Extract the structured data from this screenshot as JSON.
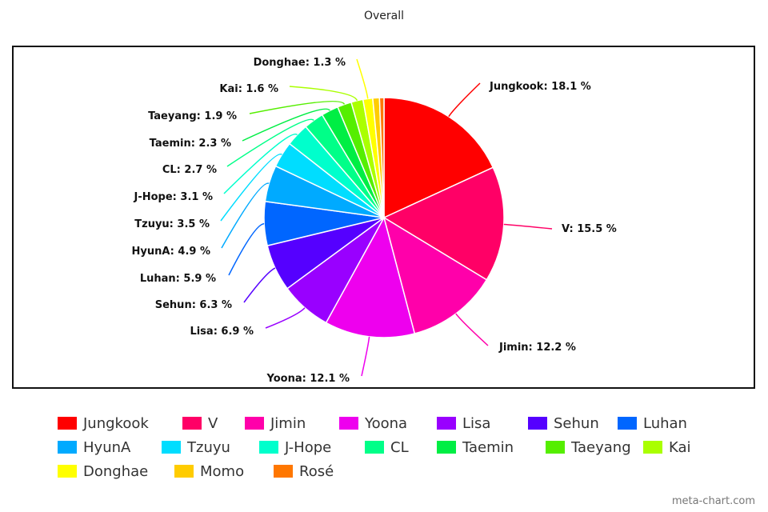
{
  "chart_data": {
    "type": "pie",
    "title": "Overall",
    "slices": [
      {
        "name": "Jungkook",
        "value": 18.1,
        "label": "Jungkook: 18.1 %",
        "color": "#ff0000"
      },
      {
        "name": "V",
        "value": 15.5,
        "label": "V: 15.5 %",
        "color": "#ff0066"
      },
      {
        "name": "Jimin",
        "value": 12.2,
        "label": "Jimin: 12.2 %",
        "color": "#ff00aa"
      },
      {
        "name": "Yoona",
        "value": 12.1,
        "label": "Yoona: 12.1 %",
        "color": "#ee00ee"
      },
      {
        "name": "Lisa",
        "value": 6.9,
        "label": "Lisa: 6.9 %",
        "color": "#9900ff"
      },
      {
        "name": "Sehun",
        "value": 6.3,
        "label": "Sehun: 6.3 %",
        "color": "#5500ff"
      },
      {
        "name": "Luhan",
        "value": 5.9,
        "label": "Luhan: 5.9 %",
        "color": "#0066ff"
      },
      {
        "name": "HyunA",
        "value": 4.9,
        "label": "HyunA: 4.9 %",
        "color": "#00aaff"
      },
      {
        "name": "Tzuyu",
        "value": 3.5,
        "label": "Tzuyu: 3.5 %",
        "color": "#00ddff"
      },
      {
        "name": "J-Hope",
        "value": 3.1,
        "label": "J-Hope: 3.1 %",
        "color": "#00ffcc"
      },
      {
        "name": "CL",
        "value": 2.7,
        "label": "CL: 2.7 %",
        "color": "#00ff88"
      },
      {
        "name": "Taemin",
        "value": 2.3,
        "label": "Taemin: 2.3 %",
        "color": "#00ee44"
      },
      {
        "name": "Taeyang",
        "value": 1.9,
        "label": "Taeyang: 1.9 %",
        "color": "#55ee00"
      },
      {
        "name": "Kai",
        "value": 1.6,
        "label": "Kai: 1.6 %",
        "color": "#aaff00"
      },
      {
        "name": "Donghae",
        "value": 1.3,
        "label": "Donghae: 1.3 %",
        "color": "#ffff00"
      },
      {
        "name": "Momo",
        "value": 0.9,
        "label": "",
        "color": "#ffcc00"
      },
      {
        "name": "Rosé",
        "value": 0.6,
        "label": "",
        "color": "#ff7700"
      }
    ],
    "legend_position": "bottom"
  },
  "watermark": "meta-chart.com"
}
